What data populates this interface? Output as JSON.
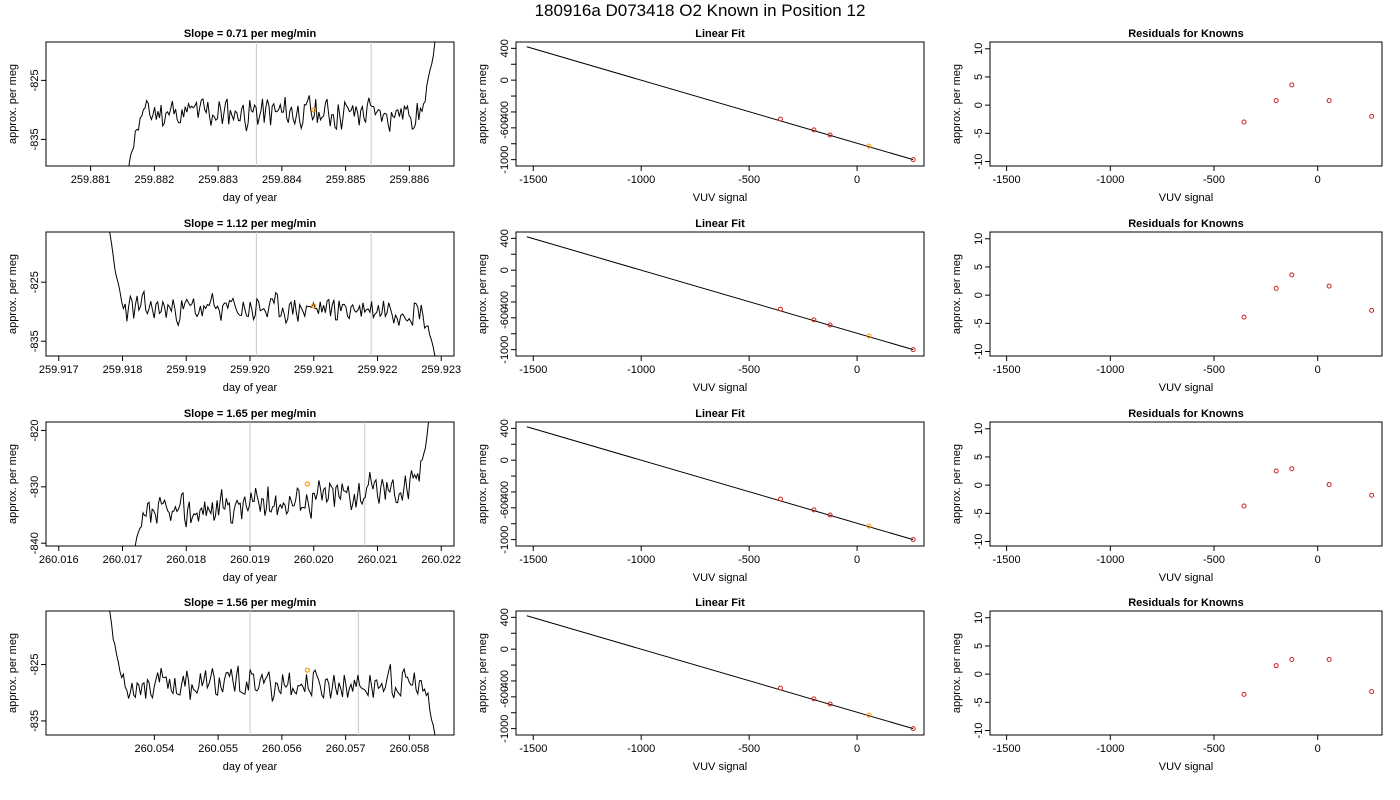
{
  "figure_title": "180916a     D073418   O2 Known in Position  12",
  "colors": {
    "trace": "#000000",
    "vline": "#c8c8c8",
    "point": "#cc2222",
    "highlight": "#ff9900"
  },
  "chart_data": [
    {
      "row": 0,
      "series": {
        "type": "line",
        "title": "Slope =  0.71  per meg/min",
        "xlabel": "day of year",
        "ylabel": "approx. per meg",
        "xlim": [
          259.8803,
          259.8867
        ],
        "ylim": [
          -839.5,
          -818.5
        ],
        "xticks": [
          259.881,
          259.882,
          259.883,
          259.884,
          259.885,
          259.886
        ],
        "xtick_labels": [
          "259.881",
          "259.882",
          "259.883",
          "259.884",
          "259.885",
          "259.886"
        ],
        "yticks": [
          -835,
          -825
        ],
        "ytick_labels": [
          "-835",
          "-825"
        ],
        "vlines": [
          259.8836,
          259.8854
        ],
        "highlight": [
          259.8845,
          -830.0
        ],
        "x_start": 259.8816,
        "x_end": 259.8864,
        "y_start": -839.5,
        "y_end": -818.5,
        "level": -830.5,
        "noise": 1.6,
        "seed": 11
      },
      "fit": {
        "type": "scatter",
        "title": "Linear Fit",
        "xlabel": "VUV signal",
        "ylabel": "approx. per meg",
        "xlim": [
          -1580,
          310
        ],
        "ylim": [
          -1080,
          480
        ],
        "xticks": [
          -1500,
          -1000,
          -500,
          0
        ],
        "xtick_labels": [
          "-1500",
          "-1000",
          "-500",
          "0"
        ],
        "yticks": [
          -1000,
          -800,
          -600,
          -400,
          -200,
          0,
          200,
          400
        ],
        "ytick_labels": [
          "-1000",
          "",
          "-600",
          "-400",
          "",
          "0",
          "",
          "400"
        ],
        "line": [
          [
            -1530,
            420
          ],
          [
            260,
            -1000
          ]
        ],
        "points": [
          [
            -355,
            -490
          ],
          [
            -200,
            -625
          ],
          [
            -125,
            -690
          ],
          [
            55,
            -830
          ],
          [
            260,
            -1000
          ]
        ],
        "highlight_index": 3
      },
      "residuals": {
        "type": "scatter",
        "title": "Residuals for Knowns",
        "xlabel": "VUV signal",
        "ylabel": "approx. per meg",
        "xlim": [
          -1580,
          310
        ],
        "ylim": [
          -10.8,
          11.2
        ],
        "xticks": [
          -1500,
          -1000,
          -500,
          0
        ],
        "xtick_labels": [
          "-1500",
          "-1000",
          "-500",
          "0"
        ],
        "yticks": [
          -10,
          -5,
          0,
          5,
          10
        ],
        "ytick_labels": [
          "-10",
          "-5",
          "0",
          "5",
          "10"
        ],
        "points": [
          [
            -355,
            -3.0
          ],
          [
            -200,
            0.8
          ],
          [
            -125,
            3.6
          ],
          [
            55,
            0.8
          ],
          [
            260,
            -2.0
          ]
        ]
      }
    },
    {
      "row": 1,
      "series": {
        "type": "line",
        "title": "Slope =  1.12  per meg/min",
        "xlabel": "day of year",
        "ylabel": "approx. per meg",
        "xlim": [
          259.9168,
          259.9232
        ],
        "ylim": [
          -837.5,
          -816.5
        ],
        "xticks": [
          259.917,
          259.918,
          259.919,
          259.92,
          259.921,
          259.922,
          259.923
        ],
        "xtick_labels": [
          "259.917",
          "259.918",
          "259.919",
          "259.920",
          "259.921",
          "259.922",
          "259.923"
        ],
        "yticks": [
          -835,
          -825
        ],
        "ytick_labels": [
          "-835",
          "-825"
        ],
        "vlines": [
          259.9201,
          259.9219
        ],
        "highlight": [
          259.921,
          -829.0
        ],
        "x_start": 259.9178,
        "x_end": 259.9229,
        "y_start": -816.5,
        "y_end": -837.5,
        "level": -829.5,
        "noise": 1.4,
        "seed": 23
      },
      "fit": {
        "type": "scatter",
        "title": "Linear Fit",
        "xlabel": "VUV signal",
        "ylabel": "approx. per meg",
        "xlim": [
          -1580,
          310
        ],
        "ylim": [
          -1080,
          480
        ],
        "xticks": [
          -1500,
          -1000,
          -500,
          0
        ],
        "xtick_labels": [
          "-1500",
          "-1000",
          "-500",
          "0"
        ],
        "yticks": [
          -1000,
          -800,
          -600,
          -400,
          -200,
          0,
          200,
          400
        ],
        "ytick_labels": [
          "-1000",
          "",
          "-600",
          "-400",
          "",
          "0",
          "",
          "400"
        ],
        "line": [
          [
            -1530,
            420
          ],
          [
            260,
            -1000
          ]
        ],
        "points": [
          [
            -355,
            -490
          ],
          [
            -200,
            -625
          ],
          [
            -125,
            -690
          ],
          [
            55,
            -830
          ],
          [
            260,
            -1000
          ]
        ],
        "highlight_index": 3
      },
      "residuals": {
        "type": "scatter",
        "title": "Residuals for Knowns",
        "xlabel": "VUV signal",
        "ylabel": "approx. per meg",
        "xlim": [
          -1580,
          310
        ],
        "ylim": [
          -10.8,
          11.2
        ],
        "xticks": [
          -1500,
          -1000,
          -500,
          0
        ],
        "xtick_labels": [
          "-1500",
          "-1000",
          "-500",
          "0"
        ],
        "yticks": [
          -10,
          -5,
          0,
          5,
          10
        ],
        "ytick_labels": [
          "-10",
          "-5",
          "0",
          "5",
          "10"
        ],
        "points": [
          [
            -355,
            -3.9
          ],
          [
            -200,
            1.2
          ],
          [
            -125,
            3.6
          ],
          [
            55,
            1.6
          ],
          [
            260,
            -2.7
          ]
        ]
      }
    },
    {
      "row": 2,
      "series": {
        "type": "line",
        "title": "Slope =  1.65  per meg/min",
        "xlabel": "day of year",
        "ylabel": "approx. per meg",
        "xlim": [
          260.0158,
          260.0222
        ],
        "ylim": [
          -840.5,
          -818.5
        ],
        "xticks": [
          260.016,
          260.017,
          260.018,
          260.019,
          260.02,
          260.021,
          260.022
        ],
        "xtick_labels": [
          "260.016",
          "260.017",
          "260.018",
          "260.019",
          "260.020",
          "260.021",
          "260.022"
        ],
        "yticks": [
          -840,
          -830,
          -820
        ],
        "ytick_labels": [
          "-840",
          "-830",
          "-820"
        ],
        "vlines": [
          260.019,
          260.0208
        ],
        "highlight": [
          260.0199,
          -829.5
        ],
        "x_start": 260.0172,
        "x_end": 260.0218,
        "y_start": -840.5,
        "y_end": -818.5,
        "level": -832.5,
        "trend": 6,
        "noise": 1.8,
        "seed": 37
      },
      "fit": {
        "type": "scatter",
        "title": "Linear Fit",
        "xlabel": "VUV signal",
        "ylabel": "approx. per meg",
        "xlim": [
          -1580,
          310
        ],
        "ylim": [
          -1080,
          480
        ],
        "xticks": [
          -1500,
          -1000,
          -500,
          0
        ],
        "xtick_labels": [
          "-1500",
          "-1000",
          "-500",
          "0"
        ],
        "yticks": [
          -1000,
          -800,
          -600,
          -400,
          -200,
          0,
          200,
          400
        ],
        "ytick_labels": [
          "-1000",
          "",
          "-600",
          "-400",
          "",
          "0",
          "",
          "400"
        ],
        "line": [
          [
            -1530,
            420
          ],
          [
            260,
            -1000
          ]
        ],
        "points": [
          [
            -355,
            -490
          ],
          [
            -200,
            -625
          ],
          [
            -125,
            -690
          ],
          [
            55,
            -830
          ],
          [
            260,
            -1000
          ]
        ],
        "highlight_index": 3
      },
      "residuals": {
        "type": "scatter",
        "title": "Residuals for Knowns",
        "xlabel": "VUV signal",
        "ylabel": "approx. per meg",
        "xlim": [
          -1580,
          310
        ],
        "ylim": [
          -10.8,
          11.2
        ],
        "xticks": [
          -1500,
          -1000,
          -500,
          0
        ],
        "xtick_labels": [
          "-1500",
          "-1000",
          "-500",
          "0"
        ],
        "yticks": [
          -10,
          -5,
          0,
          5,
          10
        ],
        "ytick_labels": [
          "-10",
          "-5",
          "0",
          "5",
          "10"
        ],
        "points": [
          [
            -355,
            -3.7
          ],
          [
            -200,
            2.5
          ],
          [
            -125,
            2.9
          ],
          [
            55,
            0.1
          ],
          [
            260,
            -1.8
          ]
        ]
      }
    },
    {
      "row": 3,
      "series": {
        "type": "line",
        "title": "Slope =  1.56  per meg/min",
        "xlabel": "day of year",
        "ylabel": "approx. per meg",
        "xlim": [
          260.0523,
          260.0587
        ],
        "ylim": [
          -837.5,
          -815.5
        ],
        "xticks": [
          260.054,
          260.055,
          260.056,
          260.057,
          260.058
        ],
        "xtick_labels": [
          "260.054",
          "260.055",
          "260.056",
          "260.057",
          "260.058"
        ],
        "yticks": [
          -835,
          -825
        ],
        "ytick_labels": [
          "-835",
          "-825"
        ],
        "vlines": [
          260.0555,
          260.0572
        ],
        "highlight": [
          260.0564,
          -826.0
        ],
        "x_start": 260.0533,
        "x_end": 260.0584,
        "y_start": -815.5,
        "y_end": -837.5,
        "level": -828.5,
        "noise": 1.7,
        "seed": 53
      },
      "fit": {
        "type": "scatter",
        "title": "Linear Fit",
        "xlabel": "VUV signal",
        "ylabel": "approx. per meg",
        "xlim": [
          -1580,
          310
        ],
        "ylim": [
          -1080,
          480
        ],
        "xticks": [
          -1500,
          -1000,
          -500,
          0
        ],
        "xtick_labels": [
          "-1500",
          "-1000",
          "-500",
          "0"
        ],
        "yticks": [
          -1000,
          -800,
          -600,
          -400,
          -200,
          0,
          200,
          400
        ],
        "ytick_labels": [
          "-1000",
          "",
          "-600",
          "-400",
          "",
          "0",
          "",
          "400"
        ],
        "line": [
          [
            -1530,
            420
          ],
          [
            260,
            -1000
          ]
        ],
        "points": [
          [
            -355,
            -490
          ],
          [
            -200,
            -625
          ],
          [
            -125,
            -690
          ],
          [
            55,
            -830
          ],
          [
            260,
            -1000
          ]
        ],
        "highlight_index": 3
      },
      "residuals": {
        "type": "scatter",
        "title": "Residuals for Knowns",
        "xlabel": "VUV signal",
        "ylabel": "approx. per meg",
        "xlim": [
          -1580,
          310
        ],
        "ylim": [
          -10.8,
          11.2
        ],
        "xticks": [
          -1500,
          -1000,
          -500,
          0
        ],
        "xtick_labels": [
          "-1500",
          "-1000",
          "-500",
          "0"
        ],
        "yticks": [
          -10,
          -5,
          0,
          5,
          10
        ],
        "ytick_labels": [
          "-10",
          "-5",
          "0",
          "5",
          "10"
        ],
        "points": [
          [
            -355,
            -3.6
          ],
          [
            -200,
            1.5
          ],
          [
            -125,
            2.6
          ],
          [
            55,
            2.6
          ],
          [
            260,
            -3.1
          ]
        ]
      }
    }
  ]
}
